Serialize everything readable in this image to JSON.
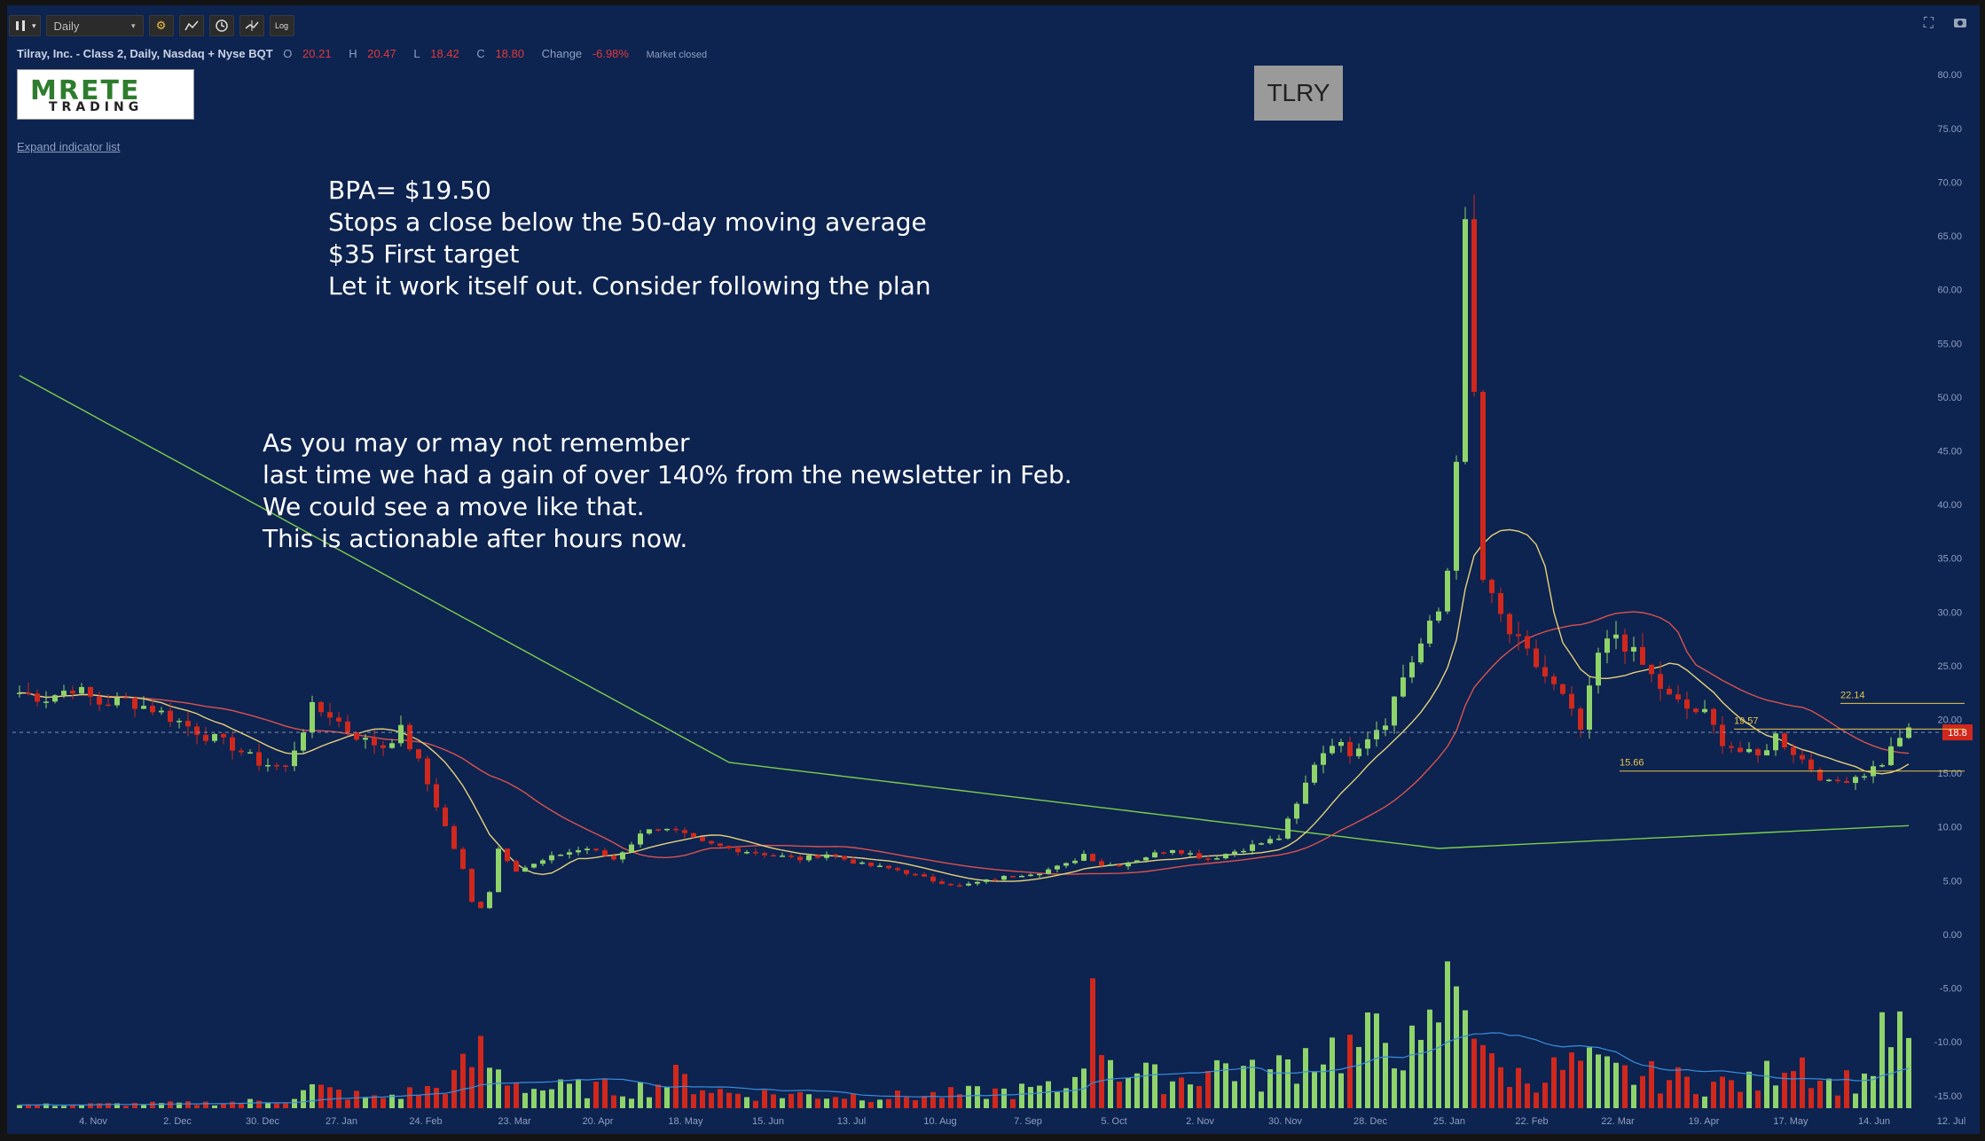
{
  "toolbar": {
    "bars_icon": "candlestick-bars-icon",
    "interval_value": "Daily",
    "settings_icon": "gear-icon",
    "indicators_icon": "indicators-icon",
    "alert_icon": "clock-icon",
    "compare_icon": "compare-icon",
    "log_label": "Log"
  },
  "legend": {
    "symbol_desc": "Tilray, Inc. - Class 2, Daily, Nasdaq + Nyse BQT",
    "open_label": "O",
    "open_value": "20.21",
    "high_label": "H",
    "high_value": "20.47",
    "low_label": "L",
    "low_value": "18.42",
    "close_label": "C",
    "close_value": "18.80",
    "change_label": "Change",
    "change_value": "-6.98%",
    "status": "Market closed"
  },
  "logo": {
    "main": "RETE",
    "sub": "TRADING",
    "prefix": "M"
  },
  "expand_indicator_list": "Expand indicator list",
  "ticker": "TLRY",
  "notes": {
    "block1": [
      "BPA= $19.50",
      "Stops a close below the 50-day moving average",
      "$35 First target",
      "Let it work itself out. Consider following the plan"
    ],
    "block2": [
      "As you may or may not remember",
      "last time we had a gain of over 140% from the newsletter in Feb.",
      "We could see a move like that.",
      "This is actionable after hours now."
    ]
  },
  "colors": {
    "background": "#0d2350",
    "up": "#8fd46a",
    "down": "#d0281c",
    "ma_short": "#e6d27a",
    "ma_mid": "#d9534f",
    "ma_long": "#7ccf4c",
    "volume_ma": "#3a8fd9",
    "level_lines": "#e6c84a",
    "last_price_tag": "#d0281c"
  },
  "chart_data": {
    "type": "candlestick",
    "ticker": "TLRY",
    "price_axis_ticks": [
      "80.00",
      "75.00",
      "70.00",
      "65.00",
      "60.00",
      "55.00",
      "50.00",
      "45.00",
      "40.00",
      "35.00",
      "30.00",
      "25.00",
      "20.00",
      "15.00",
      "10.00",
      "5.00",
      "0.00",
      "-5.00",
      "-10.00",
      "-15.00"
    ],
    "ylim": [
      -17,
      82
    ],
    "x_axis_ticks": [
      "4. Nov",
      "2. Dec",
      "30. Dec",
      "27. Jan",
      "24. Feb",
      "23. Mar",
      "20. Apr",
      "18. May",
      "15. Jun",
      "13. Jul",
      "10. Aug",
      "7. Sep",
      "5. Oct",
      "2. Nov",
      "30. Nov",
      "28. Dec",
      "25. Jan",
      "22. Feb",
      "22. Mar",
      "19. Apr",
      "17. May",
      "14. Jun",
      "12. Jul"
    ],
    "last_price": "18.8",
    "last_price_value": 18.8,
    "levels": [
      {
        "label": "22.14",
        "value": 21.5
      },
      {
        "label": "19.57",
        "value": 19.1
      },
      {
        "label": "15.66",
        "value": 15.2
      }
    ],
    "price_path": [
      [
        0,
        22.5
      ],
      [
        3,
        22.0
      ],
      [
        6,
        23.0
      ],
      [
        9,
        21.5
      ],
      [
        12,
        21.8
      ],
      [
        15,
        21.0
      ],
      [
        18,
        19.8
      ],
      [
        21,
        18.5
      ],
      [
        24,
        17.5
      ],
      [
        27,
        16.0
      ],
      [
        30,
        15.5
      ],
      [
        33,
        21.0
      ],
      [
        35,
        20.5
      ],
      [
        37,
        19.0
      ],
      [
        39,
        18.0
      ],
      [
        41,
        17.5
      ],
      [
        43,
        19.0
      ],
      [
        45,
        16.0
      ],
      [
        46,
        14.0
      ],
      [
        48,
        10.0
      ],
      [
        50,
        6.0
      ],
      [
        51,
        3.0
      ],
      [
        52,
        2.5
      ],
      [
        53,
        4.0
      ],
      [
        54,
        8.0
      ],
      [
        56,
        6.0
      ],
      [
        58,
        6.5
      ],
      [
        61,
        7.5
      ],
      [
        64,
        8.0
      ],
      [
        67,
        7.0
      ],
      [
        69,
        8.5
      ],
      [
        71,
        10.0
      ],
      [
        74,
        9.5
      ],
      [
        77,
        8.5
      ],
      [
        80,
        8.0
      ],
      [
        84,
        7.5
      ],
      [
        88,
        7.0
      ],
      [
        91,
        7.5
      ],
      [
        95,
        6.5
      ],
      [
        99,
        6.0
      ],
      [
        103,
        5.0
      ],
      [
        106,
        4.5
      ],
      [
        109,
        5.0
      ],
      [
        112,
        5.5
      ],
      [
        115,
        5.8
      ],
      [
        118,
        6.5
      ],
      [
        120,
        7.5
      ],
      [
        122,
        6.5
      ],
      [
        124,
        6.5
      ],
      [
        126,
        7.0
      ],
      [
        128,
        7.5
      ],
      [
        130,
        8.0
      ],
      [
        132,
        7.5
      ],
      [
        134,
        7.0
      ],
      [
        136,
        7.5
      ],
      [
        138,
        8.0
      ],
      [
        140,
        8.5
      ],
      [
        142,
        9.0
      ],
      [
        144,
        12.0
      ],
      [
        146,
        16.0
      ],
      [
        148,
        18.0
      ],
      [
        150,
        17.0
      ],
      [
        152,
        18.5
      ],
      [
        154,
        20.0
      ],
      [
        156,
        24.0
      ],
      [
        158,
        27.0
      ],
      [
        160,
        30.0
      ],
      [
        161,
        34.0
      ],
      [
        162,
        45.0
      ],
      [
        163,
        65.0
      ],
      [
        164,
        50.0
      ],
      [
        165,
        33.0
      ],
      [
        166,
        31.0
      ],
      [
        168,
        28.0
      ],
      [
        170,
        26.0
      ],
      [
        172,
        24.0
      ],
      [
        174,
        22.0
      ],
      [
        176,
        19.0
      ],
      [
        178,
        26.0
      ],
      [
        180,
        28.0
      ],
      [
        182,
        26.0
      ],
      [
        184,
        24.0
      ],
      [
        186,
        22.0
      ],
      [
        188,
        21.0
      ],
      [
        190,
        20.5
      ],
      [
        192,
        18.0
      ],
      [
        194,
        17.0
      ],
      [
        196,
        16.5
      ],
      [
        198,
        18.5
      ],
      [
        200,
        17.0
      ],
      [
        202,
        15.5
      ],
      [
        204,
        14.0
      ],
      [
        206,
        14.5
      ],
      [
        208,
        15.0
      ],
      [
        210,
        16.0
      ],
      [
        212,
        18.5
      ],
      [
        213,
        18.8
      ]
    ],
    "volume_path": [
      [
        0,
        0.3
      ],
      [
        10,
        0.4
      ],
      [
        20,
        0.5
      ],
      [
        30,
        0.8
      ],
      [
        33,
        2.0
      ],
      [
        40,
        1.0
      ],
      [
        47,
        2.0
      ],
      [
        49,
        3.0
      ],
      [
        52,
        5.5
      ],
      [
        54,
        3.5
      ],
      [
        58,
        2.0
      ],
      [
        70,
        2.0
      ],
      [
        74,
        3.0
      ],
      [
        80,
        1.5
      ],
      [
        100,
        1.2
      ],
      [
        118,
        2.0
      ],
      [
        121,
        9.5
      ],
      [
        124,
        4.0
      ],
      [
        128,
        3.0
      ],
      [
        131,
        3.0
      ],
      [
        136,
        4.5
      ],
      [
        140,
        3.0
      ],
      [
        144,
        5.0
      ],
      [
        146,
        6.0
      ],
      [
        150,
        6.0
      ],
      [
        155,
        7.5
      ],
      [
        158,
        5.0
      ],
      [
        160,
        10.0
      ],
      [
        162,
        13.0
      ],
      [
        163,
        14.0
      ],
      [
        164,
        10.0
      ],
      [
        166,
        4.0
      ],
      [
        170,
        3.0
      ],
      [
        176,
        4.5
      ],
      [
        180,
        3.5
      ],
      [
        186,
        3.0
      ],
      [
        190,
        2.5
      ],
      [
        196,
        2.5
      ],
      [
        200,
        6.0
      ],
      [
        204,
        2.5
      ],
      [
        208,
        3.0
      ],
      [
        210,
        6.5
      ],
      [
        212,
        8.0
      ],
      [
        213,
        5.0
      ]
    ]
  }
}
